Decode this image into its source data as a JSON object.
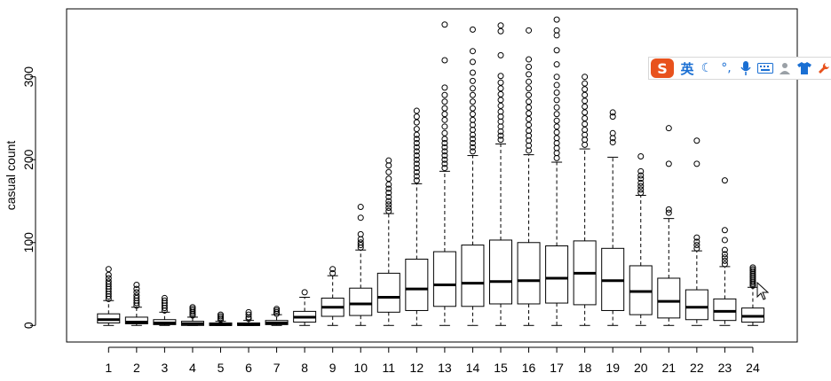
{
  "chart_data": {
    "type": "boxplot",
    "ylabel": "casual count",
    "xlabel": "",
    "title": "",
    "ylim": [
      -20,
      382
    ],
    "yticks": [
      0,
      100,
      200,
      300
    ],
    "categories": [
      "1",
      "2",
      "3",
      "4",
      "5",
      "6",
      "7",
      "8",
      "9",
      "10",
      "11",
      "12",
      "13",
      "14",
      "15",
      "16",
      "17",
      "18",
      "19",
      "20",
      "21",
      "22",
      "23",
      "24"
    ],
    "boxes": [
      {
        "cat": "1",
        "lw": 0,
        "q1": 3,
        "med": 7,
        "q3": 14,
        "uw": 30,
        "out": [
          32,
          35,
          38,
          41,
          44,
          47,
          50,
          53,
          57,
          61,
          68
        ]
      },
      {
        "cat": "2",
        "lw": 0,
        "q1": 2,
        "med": 4,
        "q3": 10,
        "uw": 22,
        "out": [
          24,
          27,
          30,
          33,
          36,
          40,
          44,
          49
        ]
      },
      {
        "cat": "3",
        "lw": 0,
        "q1": 1,
        "med": 3,
        "q3": 7,
        "uw": 16,
        "out": [
          18,
          21,
          24,
          27,
          30,
          33
        ]
      },
      {
        "cat": "4",
        "lw": 0,
        "q1": 0,
        "med": 2,
        "q3": 5,
        "uw": 10,
        "out": [
          12,
          14,
          16,
          18,
          20,
          22
        ]
      },
      {
        "cat": "5",
        "lw": 0,
        "q1": 0,
        "med": 1,
        "q3": 3,
        "uw": 5,
        "out": [
          7,
          9,
          11,
          13
        ]
      },
      {
        "cat": "6",
        "lw": 0,
        "q1": 0,
        "med": 1,
        "q3": 3,
        "uw": 6,
        "out": [
          8,
          10,
          13,
          16
        ]
      },
      {
        "cat": "7",
        "lw": 0,
        "q1": 1,
        "med": 3,
        "q3": 6,
        "uw": 13,
        "out": [
          14,
          16,
          18,
          20
        ]
      },
      {
        "cat": "8",
        "lw": 0,
        "q1": 4,
        "med": 10,
        "q3": 17,
        "uw": 34,
        "out": [
          40
        ]
      },
      {
        "cat": "9",
        "lw": 0,
        "q1": 11,
        "med": 22,
        "q3": 33,
        "uw": 60,
        "out": [
          63,
          68
        ]
      },
      {
        "cat": "10",
        "lw": 0,
        "q1": 12,
        "med": 26,
        "q3": 45,
        "uw": 91,
        "out": [
          94,
          97,
          100,
          104,
          110,
          130,
          143
        ]
      },
      {
        "cat": "11",
        "lw": 0,
        "q1": 16,
        "med": 34,
        "q3": 63,
        "uw": 135,
        "out": [
          138,
          142,
          146,
          150,
          155,
          160,
          165,
          170,
          177,
          185,
          193,
          199
        ]
      },
      {
        "cat": "12",
        "lw": 0,
        "q1": 18,
        "med": 44,
        "q3": 80,
        "uw": 171,
        "out": [
          175,
          180,
          185,
          190,
          195,
          200,
          205,
          210,
          215,
          220,
          225,
          230,
          237,
          245,
          252,
          259
        ]
      },
      {
        "cat": "13",
        "lw": 0,
        "q1": 23,
        "med": 49,
        "q3": 89,
        "uw": 186,
        "out": [
          190,
          195,
          200,
          205,
          210,
          215,
          220,
          225,
          232,
          240,
          248,
          255,
          262,
          270,
          278,
          287,
          320,
          363
        ]
      },
      {
        "cat": "14",
        "lw": 0,
        "q1": 23,
        "med": 51,
        "q3": 97,
        "uw": 205,
        "out": [
          210,
          215,
          220,
          225,
          230,
          236,
          242,
          248,
          255,
          262,
          270,
          278,
          286,
          295,
          305,
          318,
          331,
          357
        ]
      },
      {
        "cat": "15",
        "lw": 0,
        "q1": 26,
        "med": 53,
        "q3": 103,
        "uw": 219,
        "out": [
          224,
          229,
          234,
          240,
          246,
          252,
          258,
          265,
          272,
          279,
          286,
          293,
          301,
          326,
          355,
          362
        ]
      },
      {
        "cat": "16",
        "lw": 0,
        "q1": 26,
        "med": 54,
        "q3": 100,
        "uw": 206,
        "out": [
          211,
          217,
          223,
          229,
          235,
          242,
          249,
          256,
          263,
          270,
          278,
          286,
          294,
          303,
          312,
          321,
          356
        ]
      },
      {
        "cat": "17",
        "lw": 0,
        "q1": 27,
        "med": 57,
        "q3": 96,
        "uw": 197,
        "out": [
          202,
          208,
          214,
          220,
          226,
          233,
          240,
          247,
          255,
          263,
          272,
          281,
          290,
          300,
          315,
          332,
          350,
          356,
          369
        ]
      },
      {
        "cat": "18",
        "lw": 0,
        "q1": 25,
        "med": 63,
        "q3": 102,
        "uw": 213,
        "out": [
          218,
          224,
          230,
          236,
          243,
          250,
          257,
          264,
          271,
          278,
          285,
          292,
          300
        ]
      },
      {
        "cat": "19",
        "lw": 0,
        "q1": 18,
        "med": 54,
        "q3": 93,
        "uw": 203,
        "out": [
          221,
          226,
          232,
          252,
          257
        ]
      },
      {
        "cat": "20",
        "lw": 0,
        "q1": 13,
        "med": 41,
        "q3": 72,
        "uw": 157,
        "out": [
          160,
          164,
          168,
          172,
          177,
          181,
          186,
          204
        ]
      },
      {
        "cat": "21",
        "lw": 0,
        "q1": 9,
        "med": 29,
        "q3": 57,
        "uw": 129,
        "out": [
          136,
          140,
          195,
          238
        ]
      },
      {
        "cat": "22",
        "lw": 0,
        "q1": 7,
        "med": 22,
        "q3": 43,
        "uw": 90,
        "out": [
          93,
          97,
          101,
          106,
          195,
          223
        ]
      },
      {
        "cat": "23",
        "lw": 0,
        "q1": 6,
        "med": 17,
        "q3": 32,
        "uw": 71,
        "out": [
          74,
          78,
          82,
          86,
          91,
          103,
          115,
          175
        ]
      },
      {
        "cat": "24",
        "lw": 0,
        "q1": 4,
        "med": 11,
        "q3": 21,
        "uw": 46,
        "out": [
          48,
          50,
          52,
          54,
          56,
          58,
          60,
          62,
          64,
          66,
          68,
          70
        ]
      }
    ]
  },
  "ime_toolbar": {
    "logo": "S",
    "language": "英",
    "icons": [
      "moon-icon",
      "punctuation-icon",
      "microphone-icon",
      "keyboard-icon",
      "user-icon",
      "shirt-icon",
      "wrench-icon"
    ]
  }
}
